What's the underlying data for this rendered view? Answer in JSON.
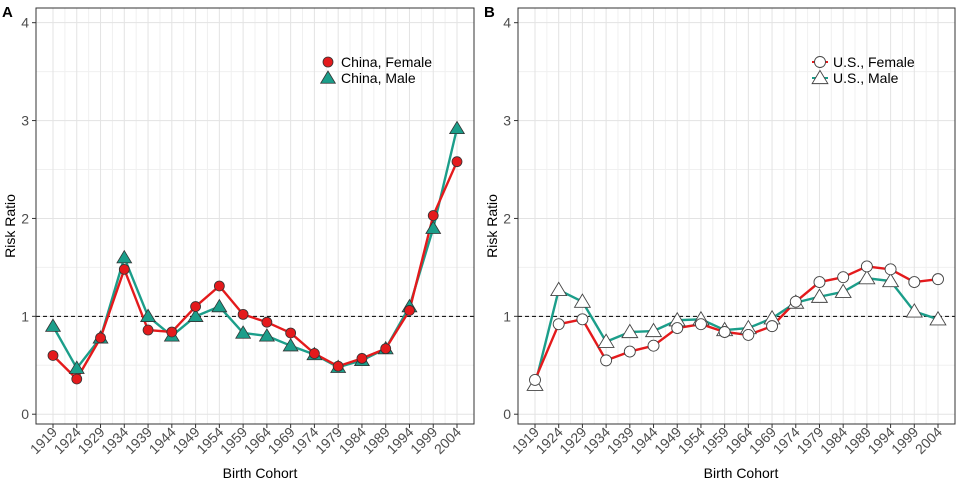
{
  "chart_data": [
    {
      "type": "line",
      "panel_label": "A",
      "xlabel": "Birth Cohort",
      "ylabel": "Risk Ratio",
      "ylim": [
        -0.1,
        4.15
      ],
      "yticks": [
        "0",
        "1",
        "2",
        "3",
        "4"
      ],
      "reference_line": 1,
      "legend_position": "top-right",
      "categories": [
        "1919",
        "1924",
        "1929",
        "1934",
        "1939",
        "1944",
        "1949",
        "1954",
        "1959",
        "1964",
        "1969",
        "1974",
        "1979",
        "1984",
        "1989",
        "1994",
        "1999",
        "2004"
      ],
      "series": [
        {
          "name": "China, Female",
          "color": "#e41a1c",
          "marker": "circle",
          "filled": true,
          "values": [
            0.6,
            0.36,
            0.78,
            1.48,
            0.86,
            0.84,
            1.1,
            1.31,
            1.02,
            0.94,
            0.83,
            0.62,
            0.49,
            0.57,
            0.67,
            1.06,
            2.03,
            2.58
          ]
        },
        {
          "name": "China, Male",
          "color": "#1b9e8a",
          "marker": "triangle",
          "filled": true,
          "values": [
            0.9,
            0.47,
            0.78,
            1.6,
            1.0,
            0.8,
            1.0,
            1.1,
            0.83,
            0.8,
            0.7,
            0.61,
            0.48,
            0.55,
            0.67,
            1.1,
            1.9,
            2.92
          ]
        }
      ]
    },
    {
      "type": "line",
      "panel_label": "B",
      "xlabel": "Birth Cohort",
      "ylabel": "Risk Ratio",
      "ylim": [
        -0.1,
        4.15
      ],
      "yticks": [
        "0",
        "1",
        "2",
        "3",
        "4"
      ],
      "reference_line": 1,
      "legend_position": "top-right",
      "categories": [
        "1919",
        "1924",
        "1929",
        "1934",
        "1939",
        "1944",
        "1949",
        "1954",
        "1959",
        "1964",
        "1969",
        "1974",
        "1979",
        "1984",
        "1989",
        "1994",
        "1999",
        "2004"
      ],
      "series": [
        {
          "name": "U.S., Female",
          "color": "#e41a1c",
          "marker": "circle",
          "filled": false,
          "values": [
            0.35,
            0.92,
            0.97,
            0.55,
            0.64,
            0.7,
            0.88,
            0.92,
            0.84,
            0.81,
            0.9,
            1.15,
            1.35,
            1.4,
            1.51,
            1.48,
            1.35,
            1.38
          ]
        },
        {
          "name": "U.S., Male",
          "color": "#1b9e8a",
          "marker": "triangle",
          "filled": false,
          "values": [
            0.3,
            1.27,
            1.15,
            0.74,
            0.84,
            0.85,
            0.96,
            0.97,
            0.86,
            0.88,
            0.98,
            1.14,
            1.2,
            1.25,
            1.39,
            1.36,
            1.05,
            0.97
          ]
        }
      ]
    }
  ]
}
